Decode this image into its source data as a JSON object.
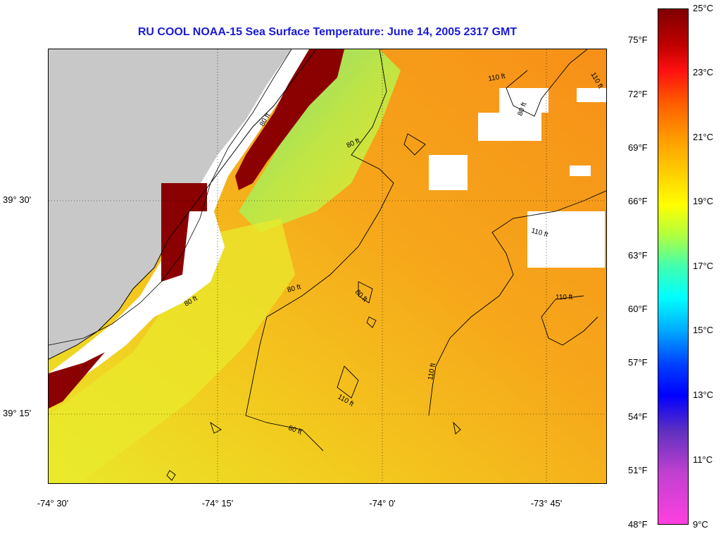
{
  "title": "RU COOL  NOAA-15  Sea Surface Temperature:  June 14, 2005 2317 GMT",
  "map": {
    "lat_labels": [
      "39° 30'",
      "39° 15'"
    ],
    "lon_labels": [
      "-74° 30'",
      "-74° 15'",
      "-74° 0'",
      "-73° 45'"
    ],
    "contour_labels": [
      "80 ft",
      "80 ft",
      "80 ft",
      "80 ft",
      "80 ft",
      "80 ft",
      "110 ft",
      "110 ft",
      "110 ft",
      "110 ft",
      "110 ft",
      "110 ft",
      "80 ft"
    ],
    "land_color": "#c8c8c8",
    "cloud_color": "#ffffff"
  },
  "colorbar": {
    "celsius_labels": [
      "25°C",
      "23°C",
      "21°C",
      "19°C",
      "17°C",
      "15°C",
      "13°C",
      "11°C",
      "9°C"
    ],
    "fahrenheit_labels": [
      "75°F",
      "72°F",
      "69°F",
      "66°F",
      "63°F",
      "60°F",
      "57°F",
      "54°F",
      "51°F",
      "48°F"
    ],
    "min_c": 9,
    "max_c": 25
  }
}
